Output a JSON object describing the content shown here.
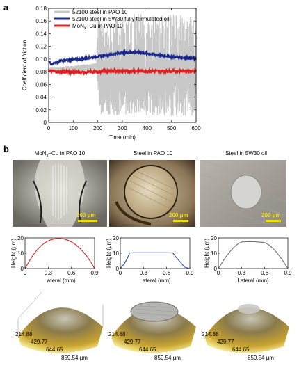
{
  "panel_a": {
    "letter": "a"
  },
  "panel_b": {
    "letter": "b"
  },
  "chart_data": [
    {
      "type": "line",
      "title": "",
      "xlabel": "Time (min)",
      "ylabel": "Coefficient of friction",
      "xlim": [
        0,
        600
      ],
      "ylim": [
        0,
        0.18
      ],
      "x_ticks": [
        0,
        100,
        200,
        300,
        400,
        500,
        600
      ],
      "y_ticks": [
        0,
        0.02,
        0.04,
        0.06,
        0.08,
        0.1,
        0.12,
        0.14,
        0.16,
        0.18
      ],
      "y_tick_labels": [
        "0",
        "0.02",
        "0.04",
        "0.06",
        "0.08",
        "0.10",
        "0.12",
        "0.14",
        "0.16",
        "0.18"
      ],
      "legend_position": "top-left",
      "series": [
        {
          "name": "52100 steel in PAO 10",
          "color": "#c8c8c8",
          "style": "band",
          "x": [
            0,
            20,
            50,
            100,
            150,
            195,
            200,
            210,
            250,
            300,
            350,
            400,
            450,
            500,
            550,
            600
          ],
          "y_low": [
            0.078,
            0.078,
            0.079,
            0.08,
            0.081,
            0.082,
            0.05,
            0.012,
            0.012,
            0.01,
            0.01,
            0.01,
            0.01,
            0.01,
            0.01,
            0.01
          ],
          "y_high": [
            0.087,
            0.087,
            0.088,
            0.09,
            0.092,
            0.094,
            0.165,
            0.165,
            0.16,
            0.165,
            0.172,
            0.17,
            0.168,
            0.172,
            0.17,
            0.165
          ]
        },
        {
          "name": "52100 steel in 5W30 fully formulated oil",
          "color": "#1c2a8c",
          "x": [
            0,
            10,
            30,
            50,
            100,
            150,
            200,
            250,
            300,
            350,
            400,
            450,
            500,
            550,
            600
          ],
          "y": [
            0.097,
            0.092,
            0.095,
            0.097,
            0.099,
            0.101,
            0.104,
            0.107,
            0.11,
            0.111,
            0.109,
            0.106,
            0.104,
            0.102,
            0.101
          ]
        },
        {
          "name": "MoN_x–Cu in PAO 10",
          "color": "#e02020",
          "x": [
            0,
            50,
            100,
            150,
            200,
            250,
            300,
            350,
            400,
            450,
            500,
            550,
            600
          ],
          "y": [
            0.081,
            0.08,
            0.08,
            0.079,
            0.08,
            0.081,
            0.081,
            0.081,
            0.081,
            0.081,
            0.081,
            0.081,
            0.081
          ]
        }
      ]
    },
    {
      "type": "line",
      "xlabel": "Lateral (mm)",
      "ylabel": "Height (μm)",
      "xlim": [
        0,
        0.9
      ],
      "ylim": [
        0,
        20
      ],
      "x_ticks": [
        0,
        0.3,
        0.6,
        0.9
      ],
      "y_ticks": [
        0,
        10,
        20
      ],
      "series": [
        {
          "color": "#e02020",
          "x": [
            0,
            0.05,
            0.1,
            0.15,
            0.2,
            0.25,
            0.3,
            0.35,
            0.4,
            0.45,
            0.5,
            0.55,
            0.6,
            0.65,
            0.7,
            0.75,
            0.8,
            0.85,
            0.9
          ],
          "y": [
            0,
            4.5,
            8.5,
            11.8,
            14.5,
            16.6,
            18.1,
            19.0,
            19.5,
            19.6,
            19.3,
            18.6,
            17.4,
            15.8,
            13.7,
            11.1,
            8.0,
            4.4,
            0
          ]
        }
      ]
    },
    {
      "type": "line",
      "xlabel": "Lateral (mm)",
      "ylabel": "Height (μm)",
      "xlim": [
        0,
        0.9
      ],
      "ylim": [
        0,
        20
      ],
      "x_ticks": [
        0,
        0.3,
        0.6,
        0.9
      ],
      "y_ticks": [
        0,
        10,
        20
      ],
      "series": [
        {
          "color": "#1c4aa8",
          "x": [
            0,
            0.05,
            0.09,
            0.12,
            0.2,
            0.3,
            0.4,
            0.5,
            0.6,
            0.68,
            0.72,
            0.78,
            0.83,
            0.9
          ],
          "y": [
            0,
            3.0,
            6.5,
            10.2,
            10.3,
            10.3,
            10.3,
            10.3,
            10.3,
            10.2,
            7.5,
            4.0,
            1.0,
            0
          ]
        }
      ]
    },
    {
      "type": "line",
      "xlabel": "Lateral (mm)",
      "ylabel": "Height (μm)",
      "xlim": [
        0,
        0.9
      ],
      "ylim": [
        0,
        20
      ],
      "x_ticks": [
        0,
        0.3,
        0.6,
        0.9
      ],
      "y_ticks": [
        0,
        10,
        20
      ],
      "series": [
        {
          "color": "#707070",
          "x": [
            0,
            0.05,
            0.1,
            0.15,
            0.2,
            0.25,
            0.3,
            0.35,
            0.4,
            0.45,
            0.5,
            0.55,
            0.6,
            0.65,
            0.7,
            0.75,
            0.8,
            0.85,
            0.9
          ],
          "y": [
            0,
            4.0,
            7.8,
            11.0,
            13.8,
            16.0,
            17.3,
            17.5,
            17.6,
            17.5,
            17.4,
            17.2,
            16.9,
            15.6,
            13.5,
            10.8,
            7.6,
            4.0,
            0
          ]
        }
      ]
    }
  ],
  "micrographs": [
    {
      "title_main": "MoN",
      "title_sub": "x",
      "title_rest": "–Cu in PAO 10",
      "scale_label": "200 μm"
    },
    {
      "title_main": "Steel in PAO 10",
      "title_sub": "",
      "title_rest": "",
      "scale_label": "200 μm"
    },
    {
      "title_main": "Steel in 5W30 oil",
      "title_sub": "",
      "title_rest": "",
      "scale_label": "200 μm"
    }
  ],
  "surfaces_3d": [
    {
      "dim_labels": [
        "214.88",
        "429.77",
        "644.65",
        "859.54 μm"
      ]
    },
    {
      "dim_labels": [
        "214.88",
        "429.77",
        "644.65",
        "859.54 μm"
      ]
    },
    {
      "dim_labels": [
        "214.88",
        "429.77",
        "644.65",
        "859.54 μm"
      ]
    }
  ]
}
